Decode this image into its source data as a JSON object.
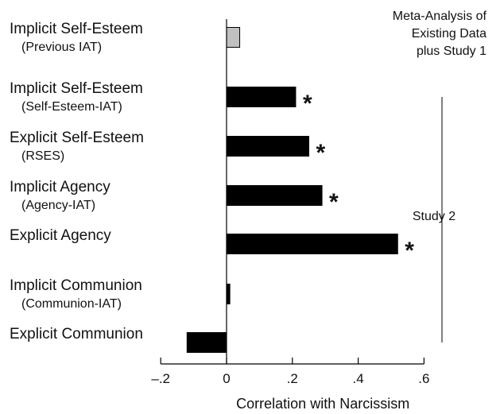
{
  "chart_data": {
    "type": "bar",
    "orientation": "horizontal",
    "xlabel": "Correlation with Narcissism",
    "xlim": [
      -0.2,
      0.6
    ],
    "xticks": [
      {
        "value": -0.2,
        "label": "–.2"
      },
      {
        "value": 0,
        "label": "0"
      },
      {
        "value": 0.2,
        "label": ".2"
      },
      {
        "value": 0.4,
        "label": ".4"
      },
      {
        "value": 0.6,
        "label": ".6"
      }
    ],
    "categories": [
      {
        "label": "Implicit Self-Esteem",
        "sublabel": "(Previous IAT)",
        "value": 0.04,
        "significant": false,
        "color": "#c0c0c0"
      },
      {
        "label": "Implicit Self-Esteem",
        "sublabel": "(Self-Esteem-IAT)",
        "value": 0.21,
        "significant": true,
        "color": "#000000"
      },
      {
        "label": "Explicit Self-Esteem",
        "sublabel": "(RSES)",
        "value": 0.25,
        "significant": true,
        "color": "#000000"
      },
      {
        "label": "Implicit Agency",
        "sublabel": "(Agency-IAT)",
        "value": 0.29,
        "significant": true,
        "color": "#000000"
      },
      {
        "label": "Explicit Agency",
        "sublabel": "",
        "value": 0.52,
        "significant": true,
        "color": "#000000"
      },
      {
        "label": "Implicit Communion",
        "sublabel": "(Communion-IAT)",
        "value": 0.01,
        "significant": false,
        "color": "#000000"
      },
      {
        "label": "Explicit Communion",
        "sublabel": "",
        "value": -0.12,
        "significant": false,
        "color": "#000000"
      }
    ],
    "significance_marker": "*",
    "annotations": {
      "meta_analysis": [
        "Meta-Analysis of",
        "Existing Data",
        "plus Study 1"
      ],
      "study2": "Study 2"
    }
  }
}
